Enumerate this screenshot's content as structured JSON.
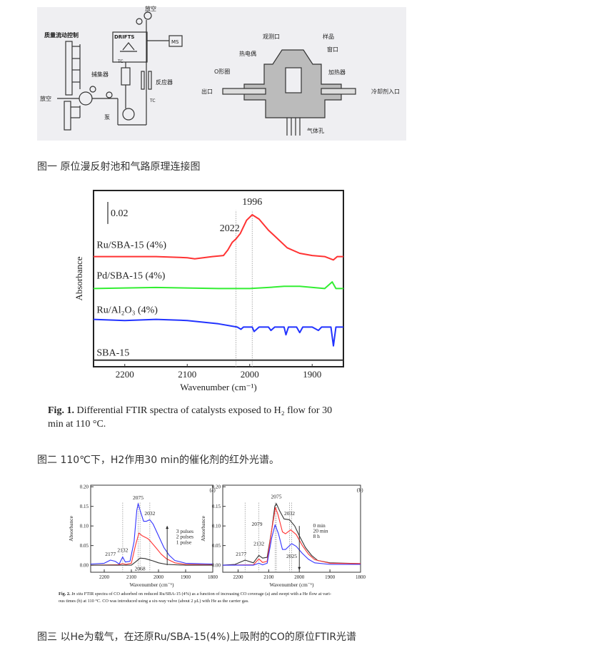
{
  "figure1": {
    "caption": "图一 原位漫反射池和气路原理连接图",
    "diagram_labels": {
      "vent_top": "放空",
      "mass_flow": "质量流动控制",
      "drifts": "DRIFTS",
      "ms": "MS",
      "trap": "捕集器",
      "reactor": "反应器",
      "vent_left": "放空",
      "pump": "泵",
      "tc1": "TC",
      "tc2": "TC",
      "obs_port": "观测口",
      "sample": "样品",
      "window": "窗口",
      "thermocouple": "热电偶",
      "oring": "O形圈",
      "heater": "加热器",
      "outlet": "出口",
      "coolant_inlet": "冷却剂入口",
      "gas_hole": "气体孔"
    }
  },
  "figure2": {
    "caption": "图二 110℃下，H2作用30 min的催化剂的红外光谱。",
    "image_caption_bold": "Fig. 1.",
    "image_caption_line1": "Differential FTIR spectra of catalysts exposed to H₂ flow for 30",
    "image_caption_line2": "min at 110 °C."
  },
  "figure3": {
    "caption": "图三 以He为载气，在还原Ru/SBA-15(4%)上吸附的CO的原位FTIR光谱",
    "image_caption_bold": "Fig. 2.",
    "image_caption_italic": "In situ",
    "image_caption_line1": " FTIR spectra of CO adsorbed on reduced Ru/SBA-15 (4%) as a function of increasing CO coverage (a) and swept with a He flow at vari-",
    "image_caption_line2": "ous times (b) at 110 °C. CO was introduced using a six-way valve (about 2 μL) with He as the carrier gas."
  },
  "chart_data": [
    {
      "id": "fig1",
      "type": "line",
      "xlabel": "Wavenumber (cm⁻¹)",
      "ylabel": "Absorbance",
      "xlim": [
        2250,
        1850
      ],
      "ylim": [
        0,
        0.16
      ],
      "xticks": [
        2200,
        2100,
        2000,
        1900
      ],
      "xtick_labels": [
        "2200",
        "2100",
        "2000",
        "1900"
      ],
      "yticks": [],
      "ytick_labels": [],
      "scale_bar": {
        "label": "0.02",
        "value": 0.02
      },
      "dotted_lines": [
        2022,
        1996
      ],
      "series": [
        {
          "name": "Ru/SBA-15 (4%)",
          "color": "#ff3333",
          "label_at": [
            2245,
            0.108
          ],
          "points": [
            [
              2250,
              0.1
            ],
            [
              2150,
              0.1
            ],
            [
              2100,
              0.099
            ],
            [
              2088,
              0.098
            ],
            [
              2060,
              0.1
            ],
            [
              2042,
              0.101
            ],
            [
              2035,
              0.106
            ],
            [
              2028,
              0.113
            ],
            [
              2022,
              0.116
            ],
            [
              2015,
              0.121
            ],
            [
              2005,
              0.133
            ],
            [
              1996,
              0.138
            ],
            [
              1985,
              0.134
            ],
            [
              1970,
              0.124
            ],
            [
              1955,
              0.116
            ],
            [
              1940,
              0.108
            ],
            [
              1920,
              0.103
            ],
            [
              1900,
              0.101
            ],
            [
              1880,
              0.1
            ],
            [
              1866,
              0.097
            ],
            [
              1860,
              0.1
            ],
            [
              1850,
              0.1
            ]
          ]
        },
        {
          "name": "Pd/SBA-15 (4%)",
          "color": "#33ee33",
          "label_at": [
            2245,
            0.08
          ],
          "points": [
            [
              2250,
              0.071
            ],
            [
              2150,
              0.072
            ],
            [
              2050,
              0.071
            ],
            [
              2000,
              0.071
            ],
            [
              1970,
              0.072
            ],
            [
              1945,
              0.073
            ],
            [
              1920,
              0.073
            ],
            [
              1880,
              0.071
            ],
            [
              1868,
              0.077
            ],
            [
              1862,
              0.071
            ],
            [
              1850,
              0.071
            ]
          ]
        },
        {
          "name": "Ru/Al₂O₃ (4%)",
          "color": "#2233ff",
          "label_at": [
            2245,
            0.049
          ],
          "points": [
            [
              2250,
              0.043
            ],
            [
              2200,
              0.042
            ],
            [
              2150,
              0.043
            ],
            [
              2100,
              0.042
            ],
            [
              2050,
              0.039
            ],
            [
              2020,
              0.036
            ],
            [
              2014,
              0.034
            ],
            [
              2010,
              0.036
            ],
            [
              1996,
              0.036
            ],
            [
              1993,
              0.032
            ],
            [
              1985,
              0.036
            ],
            [
              1970,
              0.036
            ],
            [
              1966,
              0.033
            ],
            [
              1960,
              0.036
            ],
            [
              1945,
              0.036
            ],
            [
              1942,
              0.029
            ],
            [
              1938,
              0.036
            ],
            [
              1925,
              0.036
            ],
            [
              1920,
              0.031
            ],
            [
              1915,
              0.036
            ],
            [
              1900,
              0.036
            ],
            [
              1890,
              0.033
            ],
            [
              1885,
              0.036
            ],
            [
              1870,
              0.036
            ],
            [
              1866,
              0.019
            ],
            [
              1862,
              0.036
            ],
            [
              1850,
              0.036
            ]
          ]
        },
        {
          "name": "SBA-15",
          "color": "#333333",
          "label_at": [
            2245,
            0.01
          ],
          "points": [
            [
              2250,
              0.006
            ],
            [
              1850,
              0.006
            ]
          ]
        }
      ],
      "annotations": [
        {
          "text": "1996",
          "at": [
            1996,
            0.147
          ]
        },
        {
          "text": "2022",
          "at": [
            2032,
            0.123
          ]
        }
      ]
    },
    {
      "id": "fig2a",
      "type": "line",
      "panel_label": "(a)",
      "xlabel": "Wavenumber (cm⁻¹)",
      "ylabel": "Absorbance",
      "xlim": [
        2250,
        1800
      ],
      "ylim": [
        -0.018,
        0.204
      ],
      "xticks": [
        2200,
        2100,
        2000,
        1900,
        1800
      ],
      "xtick_labels": [
        "2200",
        "2100",
        "2000",
        "1900",
        "1800"
      ],
      "yticks": [
        0,
        0.05,
        0.1,
        0.15,
        0.2
      ],
      "ytick_labels": [
        "0.00",
        "0.05",
        "0.10",
        "0.15",
        "0.20"
      ],
      "dotted_lines": [
        2132,
        2075,
        2068,
        2032
      ],
      "series": [
        {
          "name": "3 pulses",
          "color": "#3333ff",
          "points": [
            [
              2250,
              0.003
            ],
            [
              2200,
              0.005
            ],
            [
              2177,
              0.013
            ],
            [
              2160,
              0.01
            ],
            [
              2145,
              0.003
            ],
            [
              2132,
              0.021
            ],
            [
              2122,
              0.008
            ],
            [
              2105,
              0.01
            ],
            [
              2090,
              0.06
            ],
            [
              2080,
              0.14
            ],
            [
              2075,
              0.157
            ],
            [
              2068,
              0.14
            ],
            [
              2055,
              0.112
            ],
            [
              2045,
              0.112
            ],
            [
              2032,
              0.116
            ],
            [
              2020,
              0.105
            ],
            [
              2000,
              0.075
            ],
            [
              1980,
              0.045
            ],
            [
              1960,
              0.025
            ],
            [
              1940,
              0.012
            ],
            [
              1900,
              0.005
            ],
            [
              1800,
              0.003
            ]
          ]
        },
        {
          "name": "2 pulses",
          "color": "#ff3333",
          "points": [
            [
              2250,
              0
            ],
            [
              2150,
              0.001
            ],
            [
              2132,
              0.004
            ],
            [
              2120,
              0.002
            ],
            [
              2100,
              0.005
            ],
            [
              2085,
              0.05
            ],
            [
              2072,
              0.082
            ],
            [
              2060,
              0.075
            ],
            [
              2040,
              0.068
            ],
            [
              2032,
              0.063
            ],
            [
              2010,
              0.045
            ],
            [
              1990,
              0.028
            ],
            [
              1970,
              0.016
            ],
            [
              1940,
              0.006
            ],
            [
              1900,
              0.002
            ],
            [
              1800,
              0.001
            ]
          ]
        },
        {
          "name": "1 pulse",
          "color": "#333333",
          "points": [
            [
              2250,
              0
            ],
            [
              2100,
              0
            ],
            [
              2085,
              0.008
            ],
            [
              2068,
              0.018
            ],
            [
              2050,
              0.017
            ],
            [
              2020,
              0.011
            ],
            [
              2000,
              0.006
            ],
            [
              1970,
              0.002
            ],
            [
              1900,
              0
            ],
            [
              1800,
              0
            ]
          ]
        }
      ],
      "annotations": [
        {
          "text": "2177",
          "at": [
            2177,
            0.024
          ]
        },
        {
          "text": "2132",
          "at": [
            2132,
            0.034
          ]
        },
        {
          "text": "2075",
          "at": [
            2075,
            0.168
          ]
        },
        {
          "text": "2032",
          "at": [
            2032,
            0.128
          ]
        },
        {
          "text": "2068",
          "at": [
            2068,
            -0.013
          ]
        },
        {
          "text": "(a)",
          "at": [
            1812,
            0.188
          ]
        },
        {
          "text": "3 pulses",
          "at": [
            1935,
            0.082
          ]
        },
        {
          "text": "2 pulses",
          "at": [
            1935,
            0.068
          ]
        },
        {
          "text": "1 pulse",
          "at": [
            1935,
            0.054
          ]
        }
      ],
      "arrow": {
        "x": 1968,
        "from": 0,
        "to": 0.1
      }
    },
    {
      "id": "fig2b",
      "type": "line",
      "panel_label": "(b)",
      "xlabel": "Wavenumber (cm⁻¹)",
      "ylabel": "Absorbance",
      "xlim": [
        2250,
        1800
      ],
      "ylim": [
        -0.018,
        0.204
      ],
      "xticks": [
        2200,
        2100,
        2000,
        1900,
        1800
      ],
      "xtick_labels": [
        "2200",
        "2100",
        "2000",
        "1900",
        "1800"
      ],
      "yticks": [
        0,
        0.05,
        0.1,
        0.15,
        0.2
      ],
      "ytick_labels": [
        "0.00",
        "0.05",
        "0.10",
        "0.15",
        "0.20"
      ],
      "dotted_lines": [
        2177,
        2132,
        2079,
        2075,
        2032,
        2025
      ],
      "series": [
        {
          "name": "0 min",
          "color": "#333333",
          "points": [
            [
              2250,
              0
            ],
            [
              2210,
              0.002
            ],
            [
              2177,
              0.013
            ],
            [
              2150,
              0.006
            ],
            [
              2132,
              0.025
            ],
            [
              2120,
              0.018
            ],
            [
              2105,
              0.02
            ],
            [
              2090,
              0.09
            ],
            [
              2080,
              0.15
            ],
            [
              2075,
              0.157
            ],
            [
              2065,
              0.14
            ],
            [
              2050,
              0.118
            ],
            [
              2032,
              0.116
            ],
            [
              2015,
              0.1
            ],
            [
              2000,
              0.075
            ],
            [
              1980,
              0.045
            ],
            [
              1960,
              0.025
            ],
            [
              1940,
              0.012
            ],
            [
              1900,
              0.006
            ],
            [
              1800,
              0.004
            ]
          ]
        },
        {
          "name": "20 min",
          "color": "#ff3333",
          "points": [
            [
              2250,
              0
            ],
            [
              2150,
              0.001
            ],
            [
              2132,
              0.016
            ],
            [
              2120,
              0.007
            ],
            [
              2105,
              0.01
            ],
            [
              2090,
              0.09
            ],
            [
              2078,
              0.147
            ],
            [
              2070,
              0.13
            ],
            [
              2055,
              0.085
            ],
            [
              2045,
              0.08
            ],
            [
              2028,
              0.09
            ],
            [
              2010,
              0.078
            ],
            [
              1990,
              0.05
            ],
            [
              1970,
              0.028
            ],
            [
              1950,
              0.014
            ],
            [
              1900,
              0.005
            ],
            [
              1800,
              0.004
            ]
          ]
        },
        {
          "name": "8 h",
          "color": "#3333ff",
          "points": [
            [
              2250,
              0
            ],
            [
              2150,
              0
            ],
            [
              2132,
              0.005
            ],
            [
              2120,
              0.001
            ],
            [
              2105,
              0.005
            ],
            [
              2090,
              0.07
            ],
            [
              2079,
              0.103
            ],
            [
              2068,
              0.08
            ],
            [
              2055,
              0.04
            ],
            [
              2045,
              0.04
            ],
            [
              2025,
              0.055
            ],
            [
              2010,
              0.048
            ],
            [
              1990,
              0.03
            ],
            [
              1970,
              0.015
            ],
            [
              1950,
              0.006
            ],
            [
              1900,
              0.002
            ],
            [
              1800,
              0.002
            ]
          ]
        }
      ],
      "annotations": [
        {
          "text": "2177",
          "at": [
            2190,
            0.024
          ]
        },
        {
          "text": "2132",
          "at": [
            2132,
            0.05
          ]
        },
        {
          "text": "2075",
          "at": [
            2075,
            0.17
          ]
        },
        {
          "text": "2032",
          "at": [
            2032,
            0.128
          ]
        },
        {
          "text": "2079",
          "at": [
            2138,
            0.1
          ]
        },
        {
          "text": "2025",
          "at": [
            2025,
            0.018
          ]
        },
        {
          "text": "(b)",
          "at": [
            1812,
            0.188
          ]
        },
        {
          "text": "0 min",
          "at": [
            1955,
            0.097
          ]
        },
        {
          "text": "20 min",
          "at": [
            1955,
            0.083
          ]
        },
        {
          "text": "8 h",
          "at": [
            1955,
            0.069
          ]
        }
      ],
      "arrow": {
        "x": 2000,
        "from": 0.1,
        "to": -0.012
      }
    }
  ]
}
